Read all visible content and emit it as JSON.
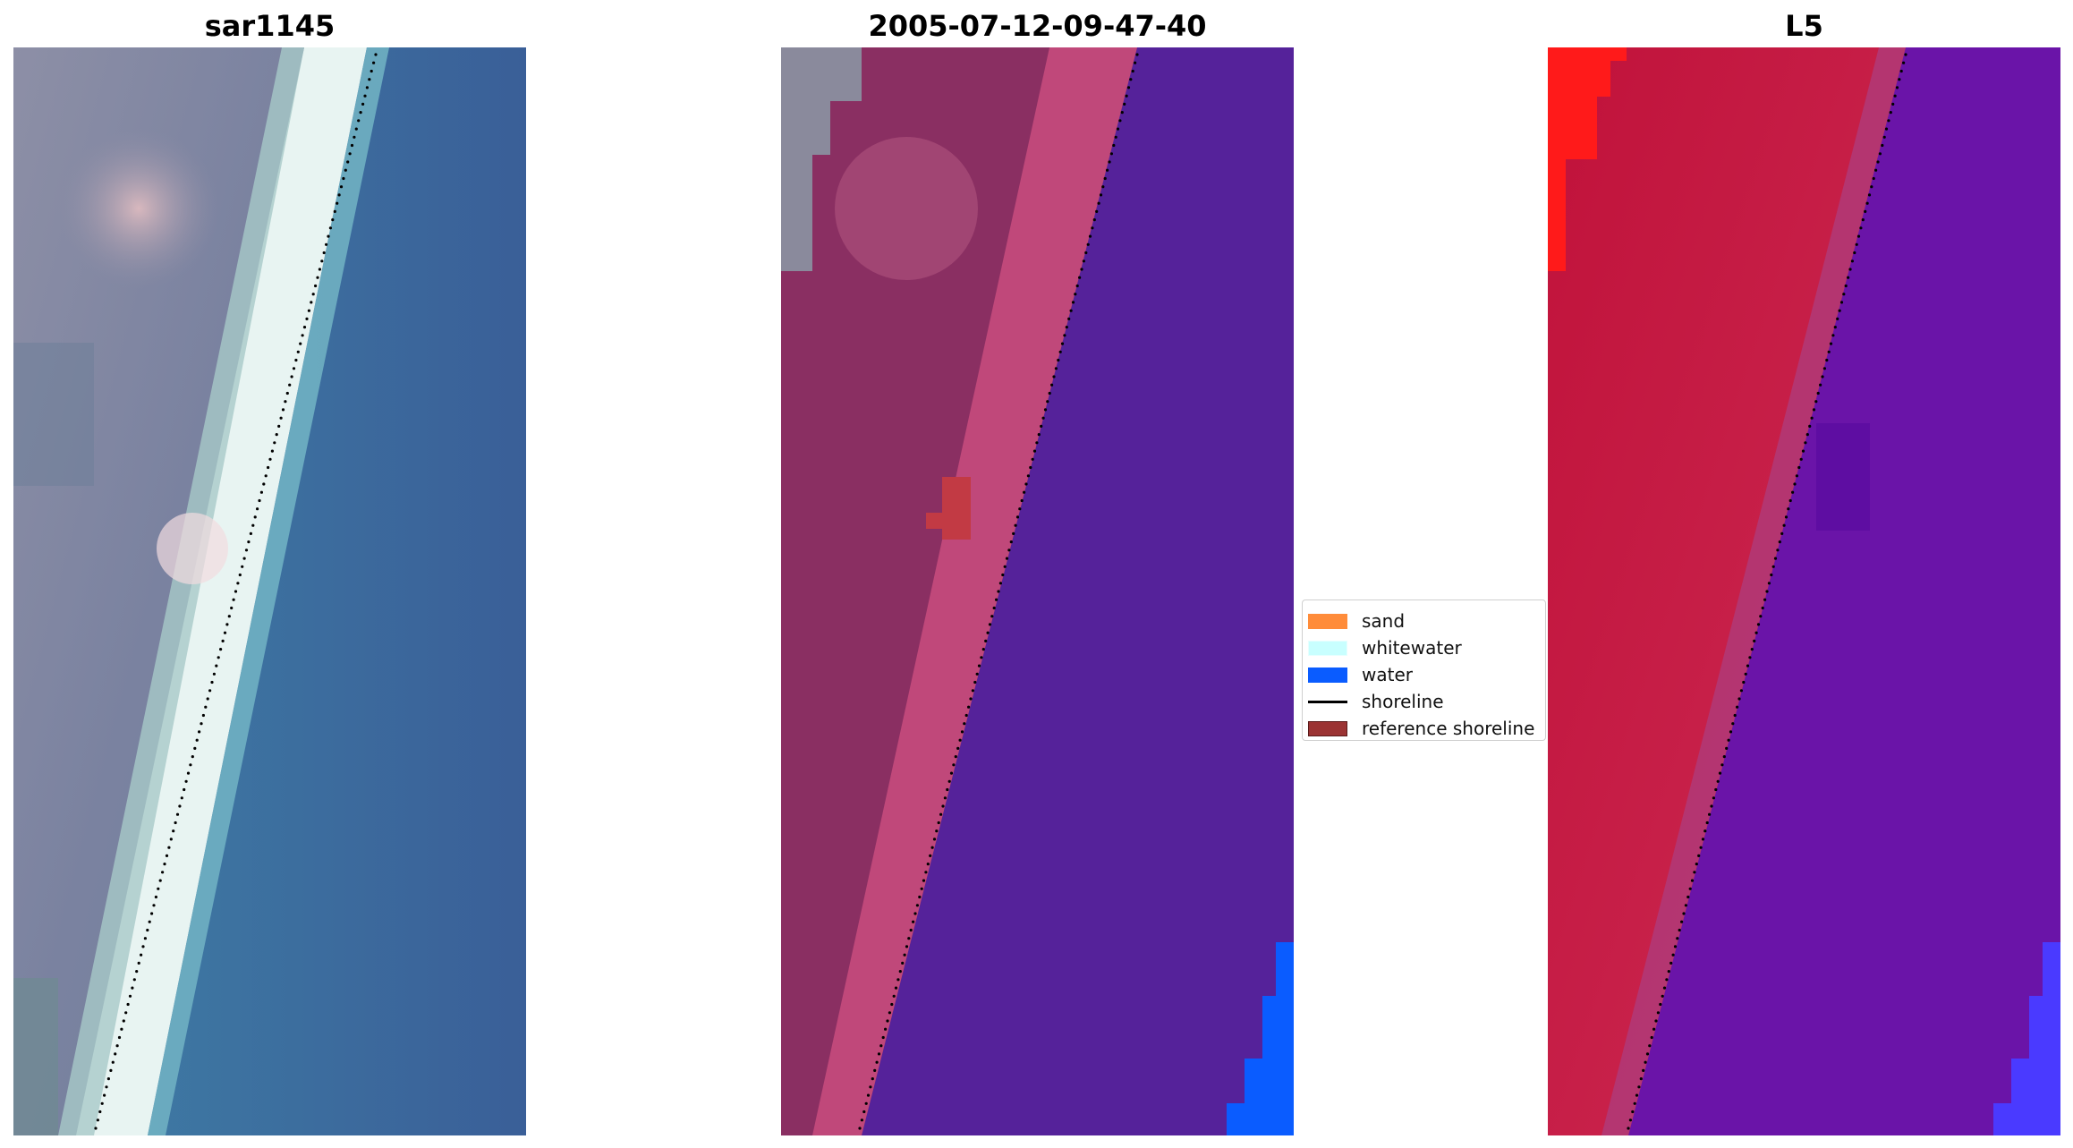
{
  "titles": {
    "left": "sar1145",
    "middle": "2005-07-12-09-47-40",
    "right": "L5"
  },
  "legend": {
    "items": [
      {
        "label": "sand",
        "color": "#ff8c3a",
        "kind": "patch"
      },
      {
        "label": "whitewater",
        "color": "#c8ffff",
        "kind": "patch"
      },
      {
        "label": "water",
        "color": "#0a5cff",
        "kind": "patch"
      },
      {
        "label": "shoreline",
        "color": "#000000",
        "kind": "line"
      },
      {
        "label": "reference shoreline",
        "color": "#9b3333",
        "kind": "patch"
      }
    ]
  },
  "colors": {
    "rgb_land": "#8a8fa6",
    "rgb_whitewater": "#e6f4f4",
    "rgb_water": "#3a6fa6",
    "class_sand": "#c0487a",
    "class_water": "#55229a",
    "class_water_edge": "#0a5cff",
    "class_land": "#8a2f62",
    "mndwi_land": "#c8163c",
    "mndwi_water": "#6a14a8",
    "mndwi_red": "#ff1a1a",
    "shoreline_dots": "#000000"
  },
  "icons": {
    "shoreline": "dotted-line"
  }
}
